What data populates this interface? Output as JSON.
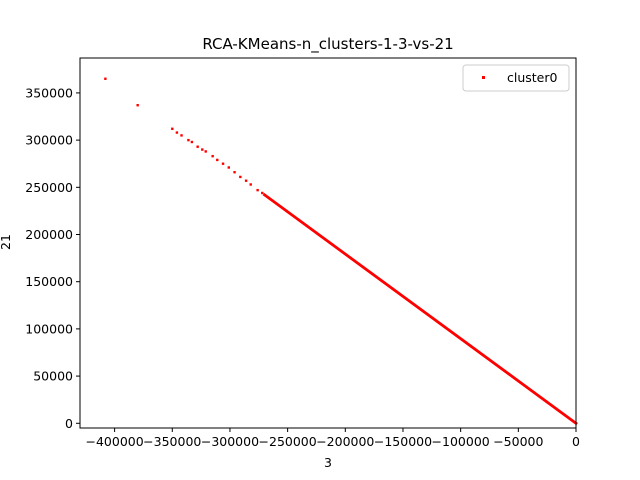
{
  "chart_data": {
    "type": "scatter",
    "title": "RCA-KMeans-n_clusters-1-3-vs-21",
    "xlabel": "3",
    "ylabel": "21",
    "xlim": [
      -430000,
      0
    ],
    "ylim": [
      -5000,
      387000
    ],
    "x_ticks": [
      -400000,
      -350000,
      -300000,
      -250000,
      -200000,
      -150000,
      -100000,
      -50000,
      0
    ],
    "y_ticks": [
      0,
      50000,
      100000,
      150000,
      200000,
      250000,
      300000,
      350000
    ],
    "grid": false,
    "legend_position": "top-right",
    "series": [
      {
        "name": "cluster0",
        "color": "#ff0000",
        "points": [
          {
            "x": -408000,
            "y": 365000
          },
          {
            "x": -380000,
            "y": 337000
          },
          {
            "x": -350000,
            "y": 312000
          },
          {
            "x": -346000,
            "y": 308000
          },
          {
            "x": -342000,
            "y": 305000
          },
          {
            "x": -336000,
            "y": 300000
          },
          {
            "x": -333000,
            "y": 298000
          },
          {
            "x": -328000,
            "y": 293000
          },
          {
            "x": -324000,
            "y": 290000
          },
          {
            "x": -321000,
            "y": 288000
          },
          {
            "x": -315000,
            "y": 283000
          },
          {
            "x": -311000,
            "y": 279000
          },
          {
            "x": -306000,
            "y": 275000
          },
          {
            "x": -301000,
            "y": 271000
          },
          {
            "x": -296000,
            "y": 266000
          },
          {
            "x": -291000,
            "y": 261000
          },
          {
            "x": -286000,
            "y": 257000
          },
          {
            "x": -282000,
            "y": 253000
          },
          {
            "x": -276000,
            "y": 247000
          },
          {
            "x": -272000,
            "y": 244000
          }
        ],
        "dense_segment": {
          "x_start": -270000,
          "x_end": 0,
          "y_start": 242000,
          "y_end": 0
        }
      }
    ]
  }
}
